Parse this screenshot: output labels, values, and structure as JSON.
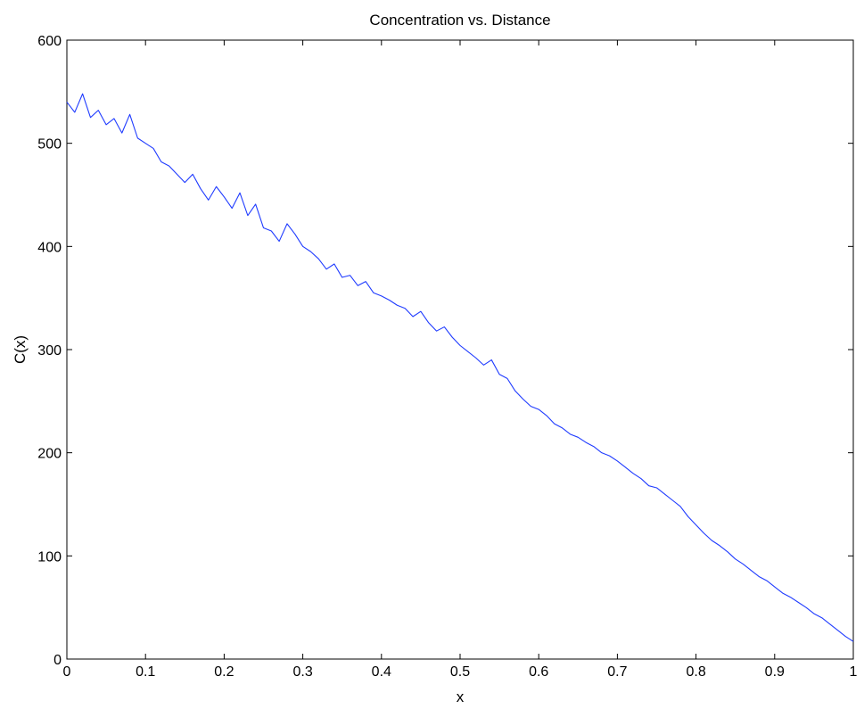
{
  "chart_data": {
    "type": "line",
    "title": "Concentration vs. Distance",
    "xlabel": "x",
    "ylabel": "C(x)",
    "xlim": [
      0,
      1
    ],
    "ylim": [
      0,
      600
    ],
    "x_ticks": [
      0,
      0.1,
      0.2,
      0.3,
      0.4,
      0.5,
      0.6,
      0.7,
      0.8,
      0.9,
      1
    ],
    "x_tick_labels": [
      "0",
      "0.1",
      "0.2",
      "0.3",
      "0.4",
      "0.5",
      "0.6",
      "0.7",
      "0.8",
      "0.9",
      "1"
    ],
    "y_ticks": [
      0,
      100,
      200,
      300,
      400,
      500,
      600
    ],
    "y_tick_labels": [
      "0",
      "100",
      "200",
      "300",
      "400",
      "500",
      "600"
    ],
    "grid": false,
    "legend": "none",
    "line_color": "#1f3bff",
    "series": [
      {
        "x": [
          0,
          0.01,
          0.02,
          0.03,
          0.04,
          0.05,
          0.06,
          0.07,
          0.08,
          0.09,
          0.1,
          0.11,
          0.12,
          0.13,
          0.14,
          0.15,
          0.16,
          0.17,
          0.18,
          0.19,
          0.2,
          0.21,
          0.22,
          0.23,
          0.24,
          0.25,
          0.26,
          0.27,
          0.28,
          0.29,
          0.3,
          0.31,
          0.32,
          0.33,
          0.34,
          0.35,
          0.36,
          0.37,
          0.38,
          0.39,
          0.4,
          0.41,
          0.42,
          0.43,
          0.44,
          0.45,
          0.46,
          0.47,
          0.48,
          0.49,
          0.5,
          0.51,
          0.52,
          0.53,
          0.54,
          0.55,
          0.56,
          0.57,
          0.58,
          0.59,
          0.6,
          0.61,
          0.62,
          0.63,
          0.64,
          0.65,
          0.66,
          0.67,
          0.68,
          0.69,
          0.7,
          0.71,
          0.72,
          0.73,
          0.74,
          0.75,
          0.76,
          0.77,
          0.78,
          0.79,
          0.8,
          0.81,
          0.82,
          0.83,
          0.84,
          0.85,
          0.86,
          0.87,
          0.88,
          0.89,
          0.9,
          0.91,
          0.92,
          0.93,
          0.94,
          0.95,
          0.96,
          0.97,
          0.98,
          0.99,
          1
        ],
        "values": [
          540,
          530,
          548,
          525,
          532,
          518,
          524,
          510,
          528,
          505,
          500,
          495,
          482,
          478,
          470,
          462,
          470,
          456,
          445,
          458,
          448,
          437,
          452,
          430,
          441,
          418,
          415,
          405,
          422,
          412,
          400,
          395,
          388,
          378,
          383,
          370,
          372,
          362,
          366,
          355,
          352,
          348,
          343,
          340,
          332,
          337,
          326,
          318,
          322,
          312,
          304,
          298,
          292,
          285,
          290,
          276,
          272,
          260,
          252,
          245,
          242,
          236,
          228,
          224,
          218,
          215,
          210,
          206,
          200,
          197,
          192,
          186,
          180,
          175,
          168,
          166,
          160,
          154,
          148,
          138,
          130,
          122,
          115,
          110,
          104,
          97,
          92,
          86,
          80,
          76,
          70,
          64,
          60,
          55,
          50,
          44,
          40,
          34,
          28,
          22,
          17
        ]
      }
    ]
  }
}
